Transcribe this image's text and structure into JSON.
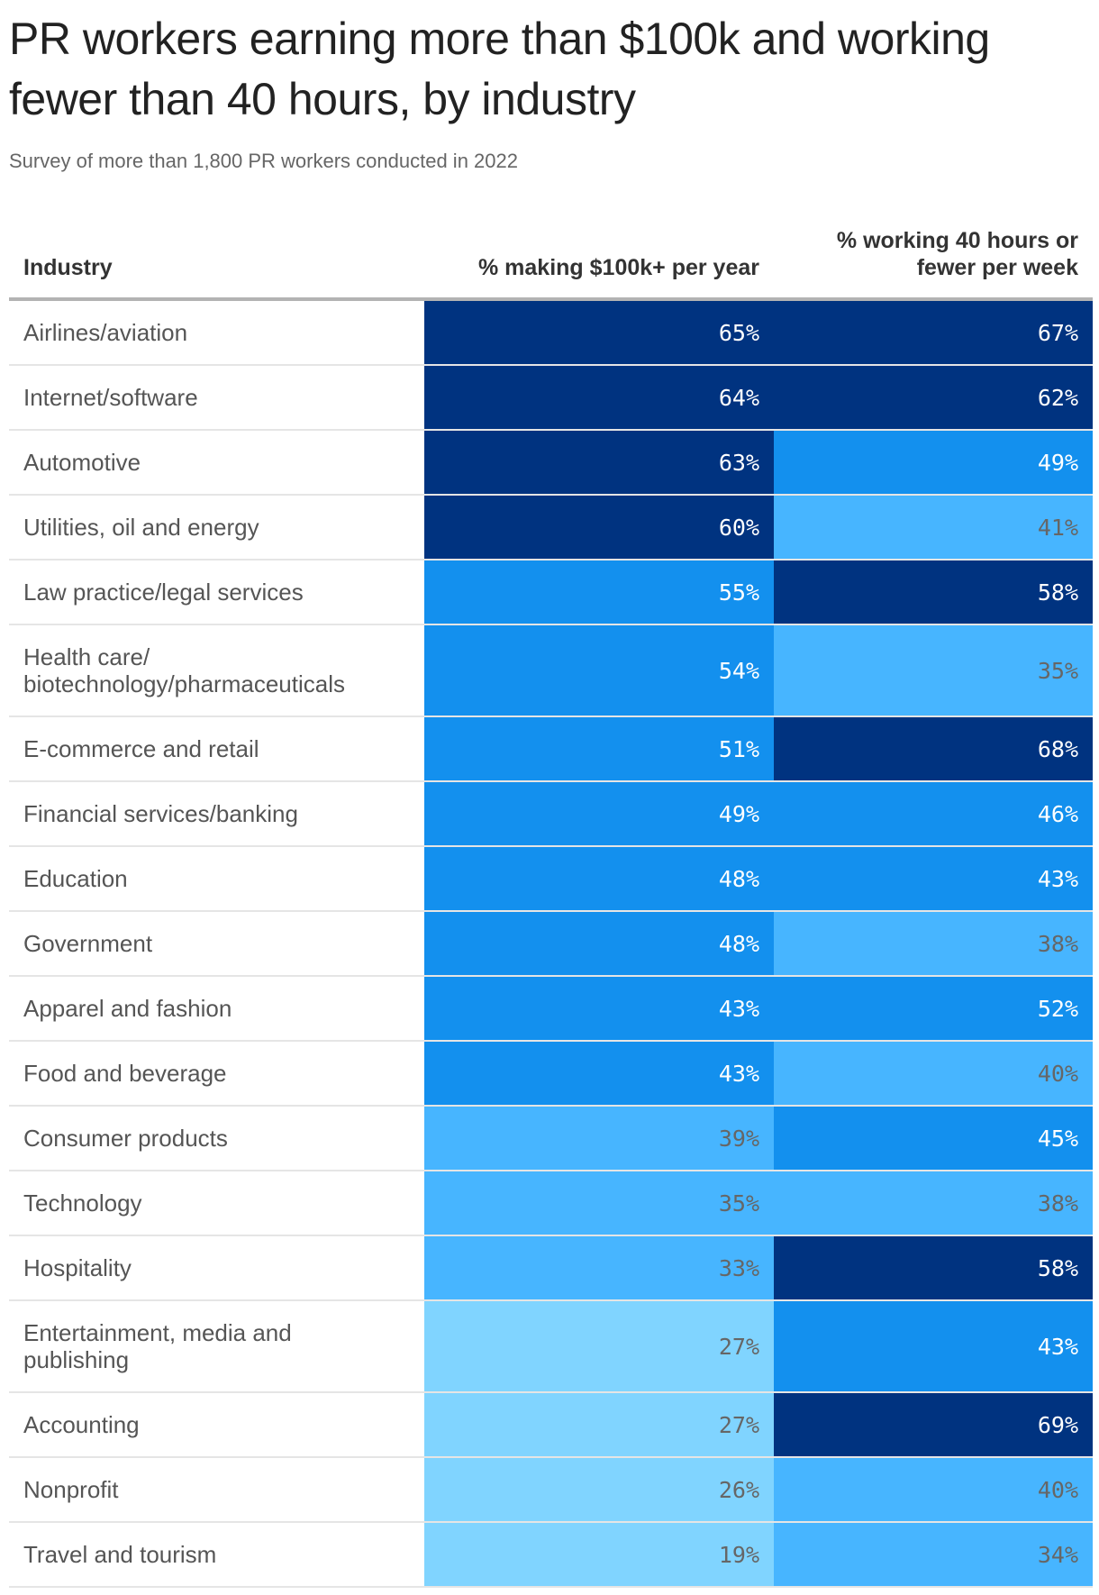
{
  "title": "PR workers earning more than $100k and working fewer than 40 hours, by industry",
  "subtitle": "Survey of more than 1,800 PR workers conducted in 2022",
  "chart_data": {
    "type": "table",
    "columns": [
      "Industry",
      "% making $100k+ per year",
      "% working 40 hours or fewer per week"
    ],
    "rows": [
      {
        "industry": "Airlines/aviation",
        "pct_100k": 65,
        "pct_40h": 67
      },
      {
        "industry": "Internet/software",
        "pct_100k": 64,
        "pct_40h": 62
      },
      {
        "industry": "Automotive",
        "pct_100k": 63,
        "pct_40h": 49
      },
      {
        "industry": "Utilities, oil and energy",
        "pct_100k": 60,
        "pct_40h": 41
      },
      {
        "industry": "Law practice/legal services",
        "pct_100k": 55,
        "pct_40h": 58
      },
      {
        "industry": "Health care/ biotechnology/pharmaceuticals",
        "pct_100k": 54,
        "pct_40h": 35
      },
      {
        "industry": "E-commerce and retail",
        "pct_100k": 51,
        "pct_40h": 68
      },
      {
        "industry": "Financial services/banking",
        "pct_100k": 49,
        "pct_40h": 46
      },
      {
        "industry": "Education",
        "pct_100k": 48,
        "pct_40h": 43
      },
      {
        "industry": "Government",
        "pct_100k": 48,
        "pct_40h": 38
      },
      {
        "industry": "Apparel and fashion",
        "pct_100k": 43,
        "pct_40h": 52
      },
      {
        "industry": "Food and beverage",
        "pct_100k": 43,
        "pct_40h": 40
      },
      {
        "industry": "Consumer products",
        "pct_100k": 39,
        "pct_40h": 45
      },
      {
        "industry": "Technology",
        "pct_100k": 35,
        "pct_40h": 38
      },
      {
        "industry": "Hospitality",
        "pct_100k": 33,
        "pct_40h": 58
      },
      {
        "industry": "Entertainment, media and publishing",
        "pct_100k": 27,
        "pct_40h": 43
      },
      {
        "industry": "Accounting",
        "pct_100k": 27,
        "pct_40h": 69
      },
      {
        "industry": "Nonprofit",
        "pct_100k": 26,
        "pct_40h": 40
      },
      {
        "industry": "Travel and tourism",
        "pct_100k": 19,
        "pct_40h": 34
      }
    ],
    "color_scale": [
      {
        "min": 56,
        "color": "#003380",
        "text": "#ffffff"
      },
      {
        "min": 42,
        "color": "#1390ee",
        "text": "#ffffff"
      },
      {
        "min": 30,
        "color": "#47b5ff",
        "text": "#666666"
      },
      {
        "min": 0,
        "color": "#80d4ff",
        "text": "#666666"
      }
    ]
  }
}
